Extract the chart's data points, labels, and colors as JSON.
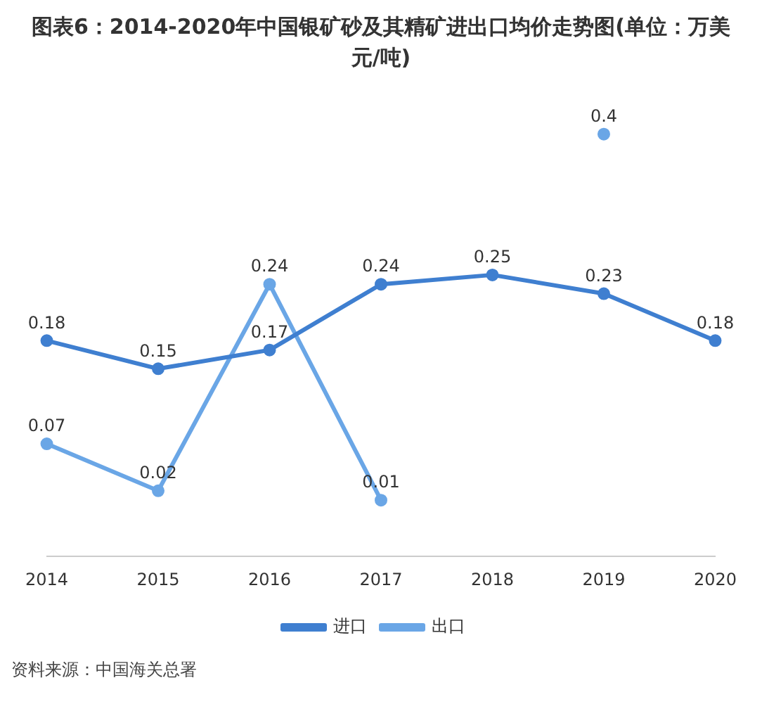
{
  "chart_data": {
    "type": "line",
    "title": "图表6：2014-2020年中国银矿砂及其精矿进出口均价走势图(单位：万美元/吨)",
    "categories": [
      "2014",
      "2015",
      "2016",
      "2017",
      "2018",
      "2019",
      "2020"
    ],
    "series": [
      {
        "name": "进口",
        "color": "#3f7fd0",
        "values": [
          0.18,
          0.15,
          0.17,
          0.24,
          0.25,
          0.23,
          0.18
        ]
      },
      {
        "name": "出口",
        "color": "#6aa6e6",
        "values": [
          0.07,
          0.02,
          0.24,
          0.01,
          null,
          0.4,
          null
        ]
      }
    ],
    "data_labels": true,
    "legend": "bottom",
    "marker": "circle",
    "line_style": "solid",
    "grid": false,
    "annotations": [
      "资料来源：中国海关总署"
    ]
  }
}
